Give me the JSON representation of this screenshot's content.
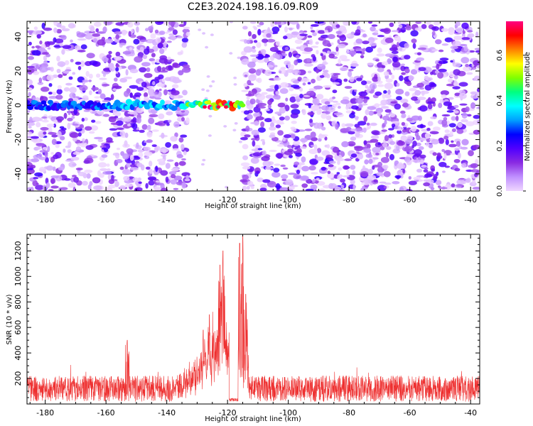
{
  "title": "C2E3.2024.198.16.09.R09",
  "colors": {
    "snr_line": "#ee3030",
    "colormap": [
      "#f0d8ff",
      "#c090ff",
      "#8a2be2",
      "#5000ff",
      "#0000ff",
      "#00a0ff",
      "#00ffff",
      "#00ff80",
      "#80ff00",
      "#ffff00",
      "#ff8000",
      "#ff0000",
      "#ff0080"
    ]
  },
  "chart_data": [
    {
      "type": "heatmap",
      "title": "",
      "xlabel": "Height of straight line (km)",
      "ylabel": "Frequency (Hz)",
      "xlim": [
        -186,
        -37
      ],
      "ylim": [
        -50,
        49
      ],
      "x_ticks": [
        -180,
        -160,
        -140,
        -120,
        -100,
        -80,
        -60,
        -40
      ],
      "y_ticks": [
        -40,
        -20,
        0,
        20,
        40
      ],
      "colorbar": {
        "label": "Normalized spectral amplitude",
        "range": [
          0.0,
          0.75
        ],
        "ticks": [
          0.0,
          0.2,
          0.4,
          0.6
        ]
      },
      "gap_no_signal_km": [
        -133,
        -115
      ],
      "signal_band": {
        "frequency_hz": 0,
        "x_start_km": -186,
        "x_end_km": -115,
        "peak_amplitude": 0.72,
        "peak_at_km": -122
      }
    },
    {
      "type": "line",
      "title": "",
      "xlabel": "Height of straight line (km)",
      "ylabel": "SNR (10 * v/v)",
      "xlim": [
        -186,
        -37
      ],
      "ylim": [
        0,
        1330
      ],
      "x_ticks": [
        -180,
        -160,
        -140,
        -120,
        -100,
        -80,
        -60,
        -40
      ],
      "y_ticks": [
        200,
        400,
        600,
        800,
        1000,
        1200
      ],
      "grid": false,
      "series": [
        {
          "name": "",
          "baseline_snr": 120,
          "noise_peak_snr": 300,
          "peaks": [
            {
              "x_km": -153,
              "snr": 500
            },
            {
              "x_km": -128,
              "snr": 580
            },
            {
              "x_km": -126,
              "snr": 700
            },
            {
              "x_km": -122.5,
              "snr": 1090
            },
            {
              "x_km": -121.5,
              "snr": 1200
            },
            {
              "x_km": -116,
              "snr": 1260
            },
            {
              "x_km": -115,
              "snr": 1330
            },
            {
              "x_km": -114,
              "snr": 860
            }
          ]
        }
      ]
    }
  ]
}
